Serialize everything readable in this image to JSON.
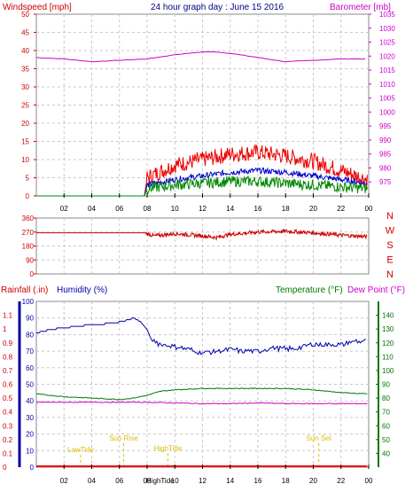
{
  "chart_data": [
    {
      "type": "line",
      "title": "24 hour graph day : June 15 2016",
      "ylabel": "Windspeed [mph]",
      "y2label": "Barometer [mb]",
      "ylim": [
        0,
        50
      ],
      "y2lim": [
        970,
        1035
      ],
      "yticks": [
        0,
        5,
        10,
        15,
        20,
        25,
        30,
        35,
        40,
        45,
        50
      ],
      "y2ticks": [
        975,
        980,
        985,
        990,
        995,
        1000,
        1005,
        1010,
        1015,
        1020,
        1025,
        1030,
        1035
      ],
      "xticks": [
        "02",
        "04",
        "06",
        "08",
        "10",
        "12",
        "14",
        "16",
        "18",
        "20",
        "22",
        "00"
      ],
      "series": [
        {
          "key": "barometer",
          "color": "#cc00cc",
          "axis": "right",
          "x": [
            0,
            2,
            4,
            6,
            8,
            10,
            12,
            13,
            14,
            16,
            18,
            20,
            22,
            23.5
          ],
          "y": [
            1019.5,
            1019,
            1018,
            1018.5,
            1019,
            1020.5,
            1021.5,
            1021.5,
            1021,
            1019.5,
            1018,
            1018.5,
            1019,
            1019
          ]
        },
        {
          "key": "gust",
          "color": "#ee0000",
          "axis": "left",
          "x": [
            0,
            7.8,
            8,
            10,
            12,
            14,
            16,
            18,
            20,
            22,
            23.9
          ],
          "y": [
            0,
            0,
            5,
            8.5,
            10,
            11.5,
            12,
            11,
            9.5,
            7,
            4.5
          ]
        },
        {
          "key": "wind",
          "color": "#0000cc",
          "axis": "left",
          "x": [
            0,
            7.8,
            8,
            10,
            12,
            14,
            16,
            18,
            20,
            22,
            23.9
          ],
          "y": [
            0,
            0,
            3,
            4.5,
            5.5,
            6.5,
            7,
            6.5,
            5.5,
            4.5,
            3.5
          ]
        },
        {
          "key": "avg",
          "color": "#008800",
          "axis": "left",
          "x": [
            0,
            7.8,
            8,
            10,
            12,
            14,
            16,
            18,
            20,
            22,
            23.9
          ],
          "y": [
            0,
            0,
            2,
            3,
            3.5,
            4,
            4,
            3.5,
            3,
            2.5,
            2
          ]
        }
      ]
    },
    {
      "type": "line",
      "ylim": [
        0,
        360
      ],
      "yticks": [
        0,
        90,
        180,
        270,
        360
      ],
      "right_labels": [
        "N",
        "W",
        "S",
        "E",
        "N"
      ],
      "series": [
        {
          "key": "direction",
          "color": "#cc0000",
          "x": [
            0,
            7.8,
            8.5,
            10,
            12,
            13,
            14,
            16,
            18,
            20,
            22,
            23.9
          ],
          "y": [
            265,
            265,
            245,
            260,
            245,
            235,
            255,
            270,
            275,
            265,
            250,
            240
          ]
        }
      ]
    },
    {
      "type": "line",
      "left_title": "Rainfall (.in)",
      "left_title2": "Humidity (%)",
      "right_title": "Temperature (°F)",
      "right_title2": "Dew Point (°F)",
      "ylim_rain": [
        0,
        1.2
      ],
      "rain_ticks": [
        0,
        0.1,
        0.2,
        0.3,
        0.4,
        0.5,
        0.6,
        0.7,
        0.8,
        0.9,
        1,
        1.1
      ],
      "ylim_hum": [
        0,
        100
      ],
      "hum_ticks": [
        0,
        10,
        20,
        30,
        40,
        50,
        60,
        70,
        80,
        90,
        100
      ],
      "ylim_temp": [
        30,
        150
      ],
      "temp_ticks": [
        40,
        50,
        60,
        70,
        80,
        90,
        100,
        110,
        120,
        130,
        140
      ],
      "xticks": [
        "02",
        "04",
        "06",
        "08",
        "10",
        "12",
        "14",
        "16",
        "18",
        "20",
        "22",
        "00"
      ],
      "annotations": [
        {
          "text": "LowTide",
          "hour": 3.2,
          "pos": 0.18
        },
        {
          "text": "Sun Rise",
          "hour": 6.3,
          "pos": 0.32
        },
        {
          "text": "HighTide",
          "hour": 9.5,
          "pos": 0.2
        },
        {
          "text": "Sun Set",
          "hour": 20.4,
          "pos": 0.32
        },
        {
          "text": "HighTide",
          "hour": 9.2,
          "pos": -0.05
        }
      ],
      "series": [
        {
          "key": "humidity",
          "color": "#0000aa",
          "axis": "hum",
          "x": [
            0,
            1,
            2,
            3,
            4,
            5,
            6,
            7,
            7.5,
            8,
            8.3,
            9,
            10,
            11,
            12,
            13,
            14,
            15,
            16,
            17,
            18,
            19,
            20,
            21,
            22,
            23,
            23.9
          ],
          "y": [
            81,
            83,
            84,
            85,
            86,
            86.5,
            87.5,
            90,
            88,
            83,
            77,
            74,
            73,
            71,
            69,
            70,
            71,
            70,
            70,
            72,
            71,
            72,
            74,
            74,
            74,
            76,
            76
          ]
        },
        {
          "key": "temperature",
          "color": "#007700",
          "axis": "temp",
          "x": [
            0,
            2,
            4,
            6,
            7,
            8,
            9,
            10,
            12,
            14,
            16,
            18,
            20,
            22,
            23.9
          ],
          "y": [
            83,
            81,
            80,
            79,
            80,
            82,
            85,
            86,
            87,
            87,
            87,
            87,
            86,
            84,
            83
          ]
        },
        {
          "key": "dewpoint",
          "color": "#cc00cc",
          "axis": "temp",
          "x": [
            0,
            2,
            4,
            6,
            8,
            10,
            12,
            14,
            16,
            18,
            20,
            22,
            23.9
          ],
          "y": [
            77,
            77,
            77,
            77,
            77,
            76.5,
            76,
            76,
            76.5,
            76,
            76,
            76,
            76
          ]
        },
        {
          "key": "rain",
          "color": "#ee0000",
          "axis": "rain",
          "x": [
            0,
            23.9
          ],
          "y": [
            0,
            0
          ]
        }
      ]
    }
  ]
}
